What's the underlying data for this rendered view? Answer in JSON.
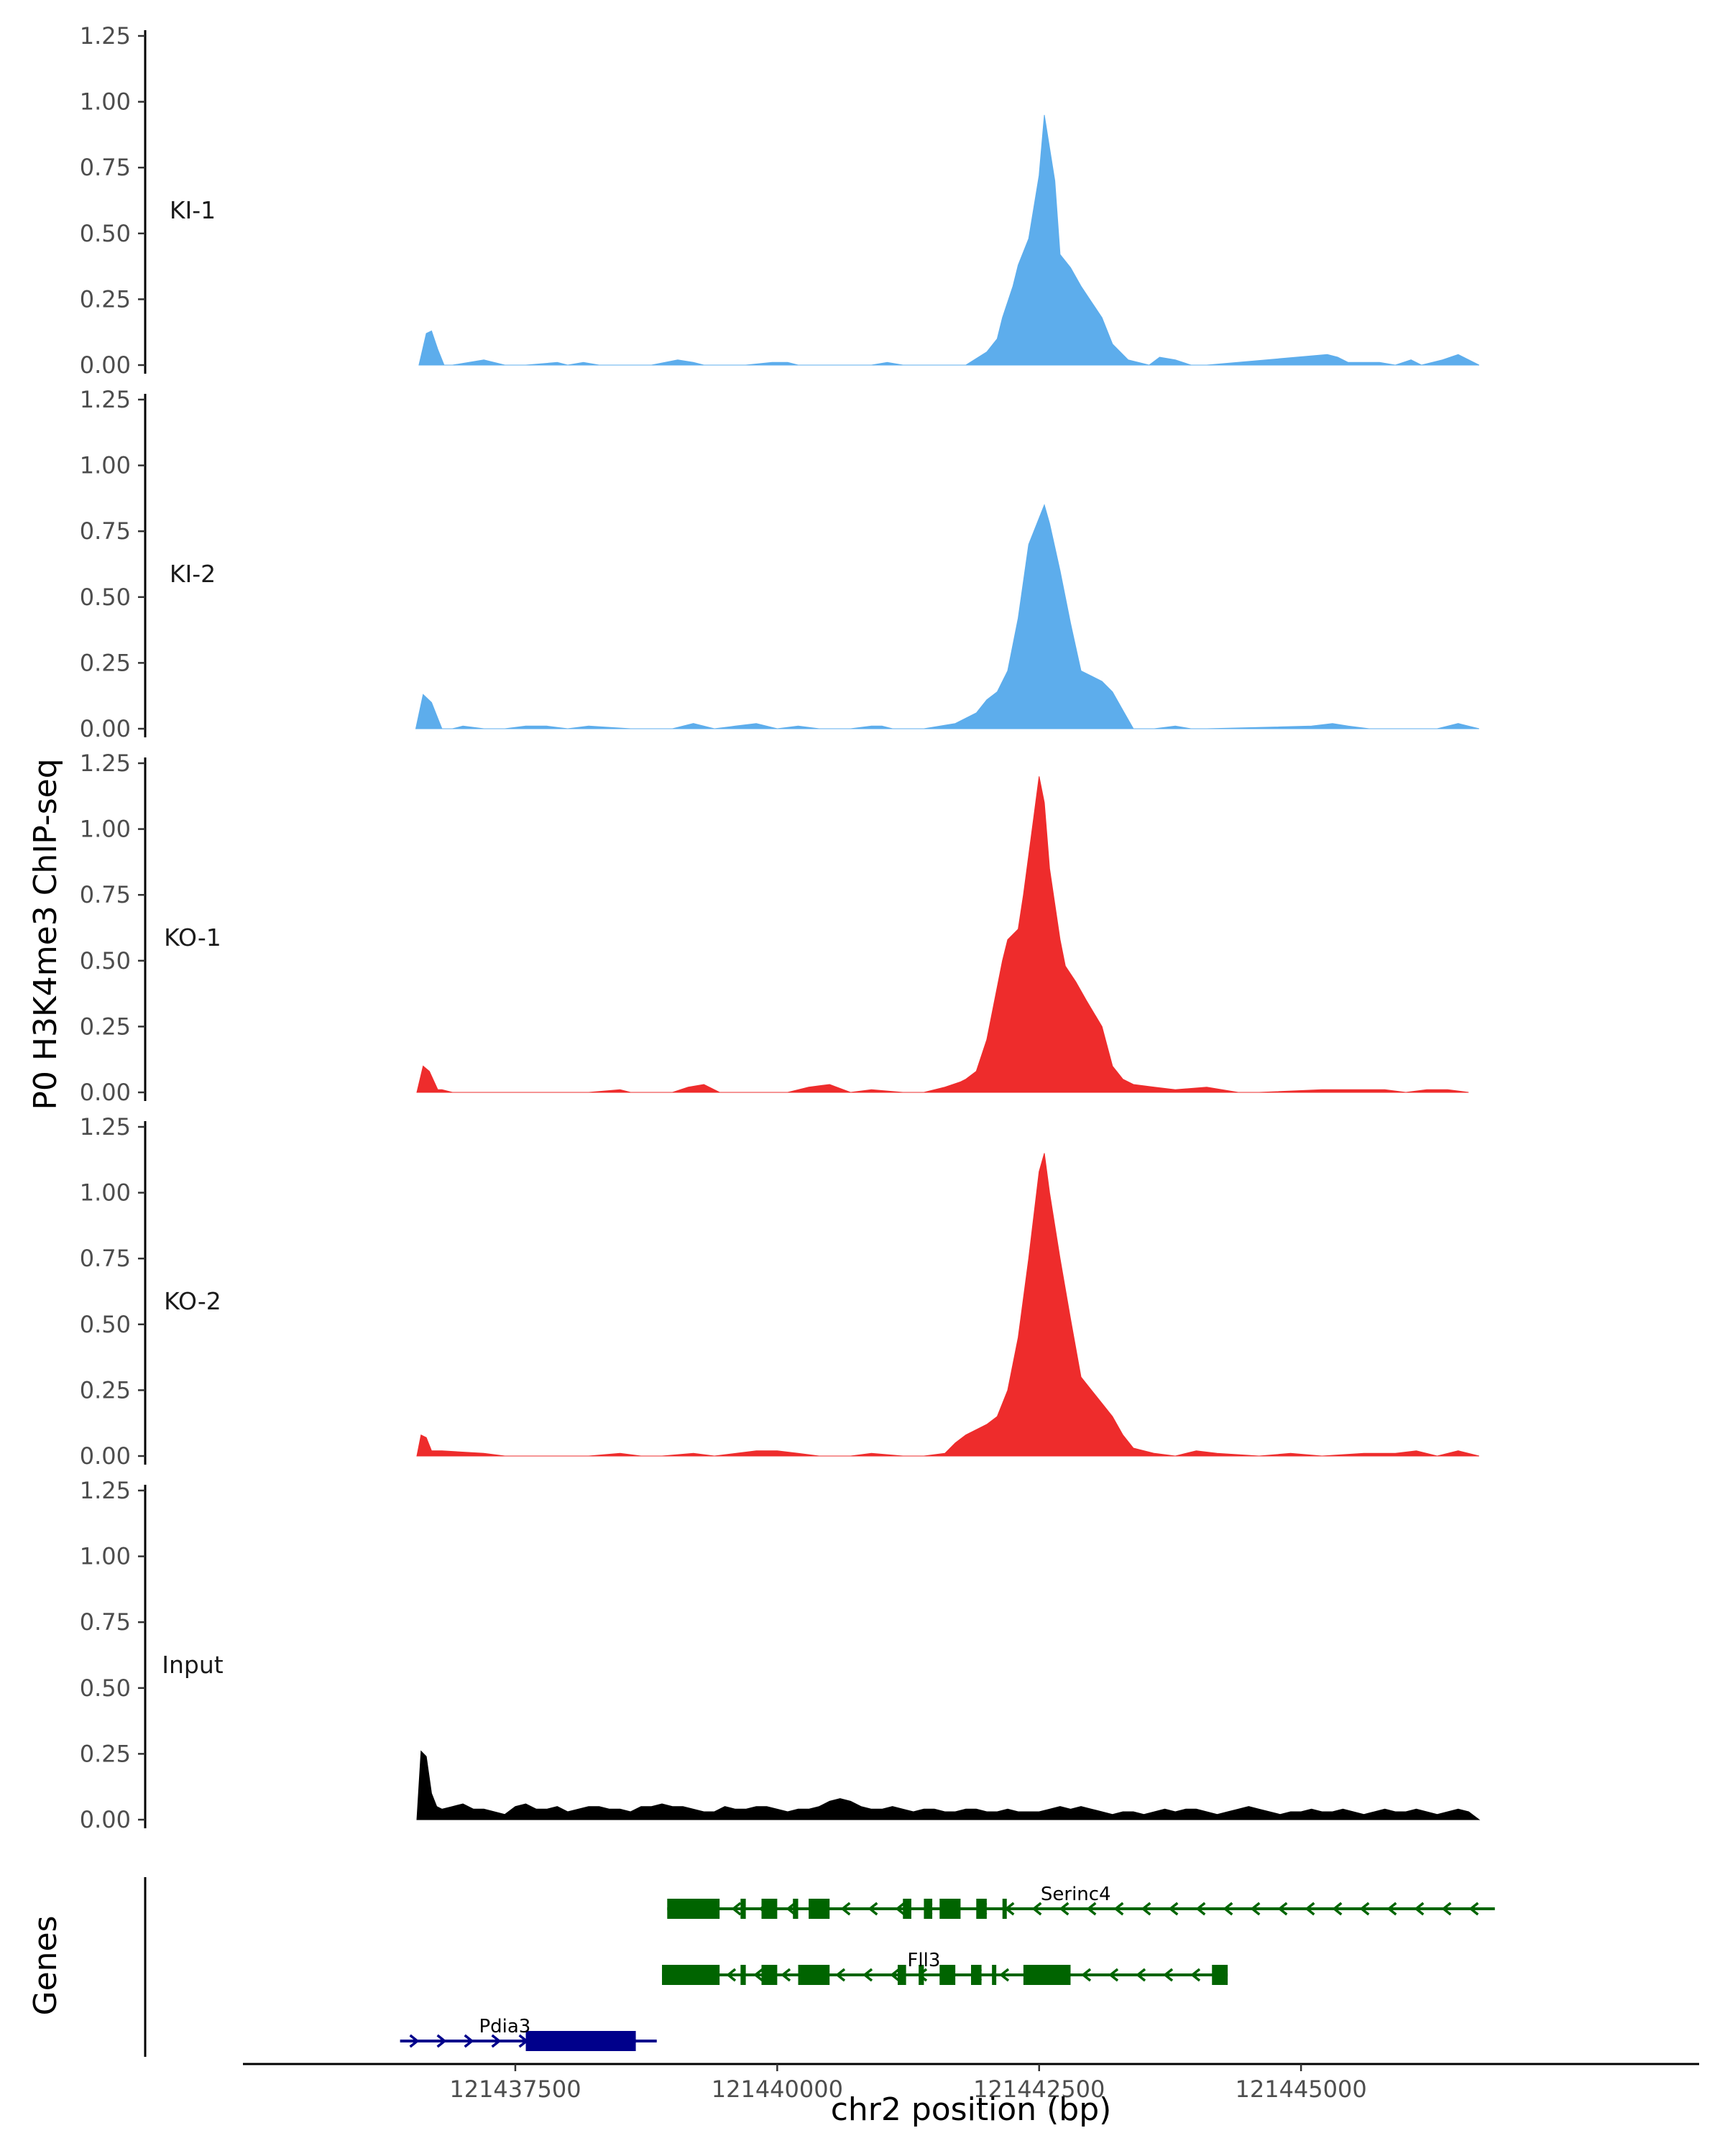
{
  "chart_data": {
    "type": "area",
    "ylabel": "P0 H3K4me3 ChIP-seq",
    "genes_label": "Genes",
    "xlabel": "chr2 position (bp)",
    "xlim": [
      121434900,
      121448800
    ],
    "x_ticks": [
      121437500,
      121440000,
      121442500,
      121445000
    ],
    "x_tick_labels": [
      "121437500",
      "121440000",
      "121442500",
      "121445000"
    ],
    "ylim": [
      0,
      1.25
    ],
    "y_ticks": [
      0,
      0.25,
      0.5,
      0.75,
      1.0,
      1.25
    ],
    "y_tick_labels": [
      "0.00",
      "0.25",
      "0.50",
      "0.75",
      "1.00",
      "1.25"
    ],
    "colors": {
      "KI": "#5DADEC",
      "KO": "#EE2C2C",
      "Input": "#000000",
      "Serinc4": "#006400",
      "Fll3": "#006400",
      "Pdia3": "#00008B"
    },
    "series": [
      {
        "name": "KI-1",
        "color": "#5DADEC",
        "x": [
          121436580,
          121436650,
          121436700,
          121436760,
          121436820,
          121436900,
          121437200,
          121437400,
          121437600,
          121437900,
          121438000,
          121438150,
          121438300,
          121438800,
          121439050,
          121439200,
          121439300,
          121439700,
          121439950,
          121440100,
          121440200,
          121440900,
          121441050,
          121441200,
          121441800,
          121442000,
          121442100,
          121442150,
          121442250,
          121442300,
          121442400,
          121442500,
          121442550,
          121442650,
          121442700,
          121442800,
          121442900,
          121443000,
          121443100,
          121443200,
          121443350,
          121443550,
          121443650,
          121443800,
          121443950,
          121444100,
          121445250,
          121445350,
          121445450,
          121445600,
          121445750,
          121445900,
          121446050,
          121446150,
          121446350,
          121446500,
          121446700
        ],
        "y": [
          0,
          0.12,
          0.13,
          0.06,
          0,
          0,
          0.02,
          0,
          0,
          0.01,
          0,
          0.01,
          0,
          0,
          0.02,
          0.01,
          0,
          0,
          0.01,
          0.01,
          0,
          0,
          0.01,
          0,
          0,
          0.05,
          0.1,
          0.18,
          0.3,
          0.38,
          0.48,
          0.72,
          0.95,
          0.7,
          0.42,
          0.37,
          0.3,
          0.24,
          0.18,
          0.08,
          0.02,
          0,
          0.03,
          0.02,
          0,
          0,
          0.04,
          0.03,
          0.01,
          0.01,
          0.01,
          0,
          0.02,
          0,
          0.02,
          0.04,
          0
        ]
      },
      {
        "name": "KI-2",
        "color": "#5DADEC",
        "x": [
          121436550,
          121436620,
          121436700,
          121436800,
          121436900,
          121437000,
          121437200,
          121437400,
          121437600,
          121437800,
          121438000,
          121438200,
          121438600,
          121438800,
          121439000,
          121439200,
          121439400,
          121439600,
          121439800,
          121440000,
          121440200,
          121440400,
          121440700,
          121440900,
          121441000,
          121441100,
          121441400,
          121441700,
          121441900,
          121442000,
          121442100,
          121442200,
          121442300,
          121442400,
          121442500,
          121442550,
          121442600,
          121442700,
          121442800,
          121442900,
          121443000,
          121443100,
          121443200,
          121443300,
          121443400,
          121443600,
          121443800,
          121443950,
          121444100,
          121445100,
          121445300,
          121445450,
          121445650,
          121446300,
          121446500,
          121446700
        ],
        "y": [
          0,
          0.13,
          0.1,
          0,
          0,
          0.01,
          0,
          0,
          0.01,
          0.01,
          0,
          0.01,
          0,
          0,
          0,
          0.02,
          0,
          0.01,
          0.02,
          0,
          0.01,
          0,
          0,
          0.01,
          0.01,
          0,
          0,
          0.02,
          0.06,
          0.11,
          0.14,
          0.22,
          0.42,
          0.7,
          0.8,
          0.85,
          0.78,
          0.6,
          0.4,
          0.22,
          0.2,
          0.18,
          0.14,
          0.07,
          0,
          0,
          0.01,
          0,
          0,
          0.01,
          0.02,
          0.01,
          0,
          0,
          0.02,
          0
        ]
      },
      {
        "name": "KO-1",
        "color": "#EE2C2C",
        "x": [
          121436560,
          121436620,
          121436680,
          121436760,
          121436800,
          121436900,
          121438200,
          121438500,
          121438600,
          121439000,
          121439150,
          121439300,
          121439450,
          121440100,
          121440300,
          121440500,
          121440700,
          121440900,
          121441200,
          121441400,
          121441600,
          121441750,
          121441800,
          121441900,
          121442000,
          121442150,
          121442200,
          121442300,
          121442350,
          121442450,
          121442500,
          121442550,
          121442600,
          121442700,
          121442750,
          121442850,
          121442950,
          121443100,
          121443200,
          121443300,
          121443400,
          121443600,
          121443800,
          121444100,
          121444400,
          121444600,
          121445200,
          121445400,
          121445600,
          121445800,
          121446000,
          121446200,
          121446400,
          121446600
        ],
        "y": [
          0,
          0.1,
          0.08,
          0.01,
          0.01,
          0,
          0,
          0.01,
          0,
          0,
          0.02,
          0.03,
          0,
          0,
          0.02,
          0.03,
          0,
          0.01,
          0,
          0,
          0.02,
          0.04,
          0.05,
          0.08,
          0.2,
          0.5,
          0.58,
          0.62,
          0.75,
          1.05,
          1.2,
          1.1,
          0.85,
          0.58,
          0.48,
          0.42,
          0.35,
          0.25,
          0.1,
          0.05,
          0.03,
          0.02,
          0.01,
          0.02,
          0,
          0,
          0.01,
          0.01,
          0.01,
          0.01,
          0,
          0.01,
          0.01,
          0
        ]
      },
      {
        "name": "KO-2",
        "color": "#EE2C2C",
        "x": [
          121436560,
          121436600,
          121436650,
          121436700,
          121436800,
          121437200,
          121437400,
          121437800,
          121438200,
          121438500,
          121438700,
          121438900,
          121439200,
          121439400,
          121439800,
          121440000,
          121440200,
          121440400,
          121440700,
          121440900,
          121441200,
          121441400,
          121441600,
          121441700,
          121441800,
          121442000,
          121442100,
          121442200,
          121442300,
          121442400,
          121442500,
          121442550,
          121442600,
          121442700,
          121442800,
          121442900,
          121443000,
          121443100,
          121443200,
          121443300,
          121443400,
          121443600,
          121443800,
          121444000,
          121444200,
          121444600,
          121444900,
          121445200,
          121445600,
          121445900,
          121446100,
          121446300,
          121446500,
          121446700
        ],
        "y": [
          0,
          0.08,
          0.07,
          0.02,
          0.02,
          0.01,
          0,
          0,
          0,
          0.01,
          0,
          0,
          0.01,
          0,
          0.02,
          0.02,
          0.01,
          0,
          0,
          0.01,
          0,
          0,
          0.01,
          0.05,
          0.08,
          0.12,
          0.15,
          0.25,
          0.45,
          0.75,
          1.08,
          1.15,
          1.0,
          0.75,
          0.52,
          0.3,
          0.25,
          0.2,
          0.15,
          0.08,
          0.03,
          0.01,
          0,
          0.02,
          0.01,
          0,
          0.01,
          0,
          0.01,
          0.01,
          0.02,
          0,
          0.02,
          0
        ]
      },
      {
        "name": "Input",
        "color": "#000000",
        "x": [
          121436560,
          121436600,
          121436650,
          121436700,
          121436750,
          121436800,
          121436900,
          121437000,
          121437100,
          121437200,
          121437300,
          121437400,
          121437500,
          121437600,
          121437700,
          121437800,
          121437900,
          121438000,
          121438100,
          121438200,
          121438300,
          121438400,
          121438500,
          121438600,
          121438700,
          121438800,
          121438900,
          121439000,
          121439100,
          121439200,
          121439300,
          121439400,
          121439500,
          121439600,
          121439700,
          121439800,
          121439900,
          121440000,
          121440100,
          121440200,
          121440300,
          121440400,
          121440500,
          121440600,
          121440700,
          121440800,
          121440900,
          121441000,
          121441100,
          121441200,
          121441300,
          121441400,
          121441500,
          121441600,
          121441700,
          121441800,
          121441900,
          121442000,
          121442100,
          121442200,
          121442300,
          121442400,
          121442500,
          121442600,
          121442700,
          121442800,
          121442900,
          121443000,
          121443100,
          121443200,
          121443300,
          121443400,
          121443500,
          121443600,
          121443700,
          121443800,
          121443900,
          121444000,
          121444100,
          121444200,
          121444300,
          121444400,
          121444500,
          121444600,
          121444700,
          121444800,
          121444900,
          121445000,
          121445100,
          121445200,
          121445300,
          121445400,
          121445500,
          121445600,
          121445700,
          121445800,
          121445900,
          121446000,
          121446100,
          121446200,
          121446300,
          121446400,
          121446500,
          121446600,
          121446700
        ],
        "y": [
          0,
          0.26,
          0.24,
          0.1,
          0.05,
          0.04,
          0.05,
          0.06,
          0.04,
          0.04,
          0.03,
          0.02,
          0.05,
          0.06,
          0.04,
          0.04,
          0.05,
          0.03,
          0.04,
          0.05,
          0.05,
          0.04,
          0.04,
          0.03,
          0.05,
          0.05,
          0.06,
          0.05,
          0.05,
          0.04,
          0.03,
          0.03,
          0.05,
          0.04,
          0.04,
          0.05,
          0.05,
          0.04,
          0.03,
          0.04,
          0.04,
          0.05,
          0.07,
          0.08,
          0.07,
          0.05,
          0.04,
          0.04,
          0.05,
          0.04,
          0.03,
          0.04,
          0.04,
          0.03,
          0.03,
          0.04,
          0.04,
          0.03,
          0.03,
          0.04,
          0.03,
          0.03,
          0.03,
          0.04,
          0.05,
          0.04,
          0.05,
          0.04,
          0.03,
          0.02,
          0.03,
          0.03,
          0.02,
          0.03,
          0.04,
          0.03,
          0.04,
          0.04,
          0.03,
          0.02,
          0.03,
          0.04,
          0.05,
          0.04,
          0.03,
          0.02,
          0.03,
          0.03,
          0.04,
          0.03,
          0.03,
          0.04,
          0.03,
          0.02,
          0.03,
          0.04,
          0.03,
          0.03,
          0.04,
          0.03,
          0.02,
          0.03,
          0.04,
          0.03,
          0
        ]
      }
    ],
    "genes": [
      {
        "name": "Serinc4",
        "strand": "-",
        "color": "#006400",
        "start": 121438950,
        "end": 121446850,
        "exons": [
          [
            121438950,
            121439450
          ],
          [
            121439650,
            121439700
          ],
          [
            121439850,
            121440000
          ],
          [
            121440150,
            121440200
          ],
          [
            121440300,
            121440500
          ],
          [
            121441200,
            121441280
          ],
          [
            121441400,
            121441480
          ],
          [
            121441550,
            121441750
          ],
          [
            121441900,
            121442000
          ],
          [
            121442150,
            121442180
          ]
        ]
      },
      {
        "name": "Fll3",
        "strand": "-",
        "color": "#006400",
        "start": 121438900,
        "end": 121444300,
        "exons": [
          [
            121438900,
            121439450
          ],
          [
            121439650,
            121439700
          ],
          [
            121439850,
            121440000
          ],
          [
            121440200,
            121440500
          ],
          [
            121441150,
            121441230
          ],
          [
            121441350,
            121441400
          ],
          [
            121441550,
            121441700
          ],
          [
            121441850,
            121441950
          ],
          [
            121442050,
            121442080
          ],
          [
            121442350,
            121442800
          ],
          [
            121444150,
            121444300
          ]
        ]
      },
      {
        "name": "Pdia3",
        "strand": "+",
        "color": "#00008B",
        "start": 121436400,
        "end": 121438850,
        "exons": [
          [
            121437600,
            121438650
          ]
        ]
      }
    ]
  }
}
